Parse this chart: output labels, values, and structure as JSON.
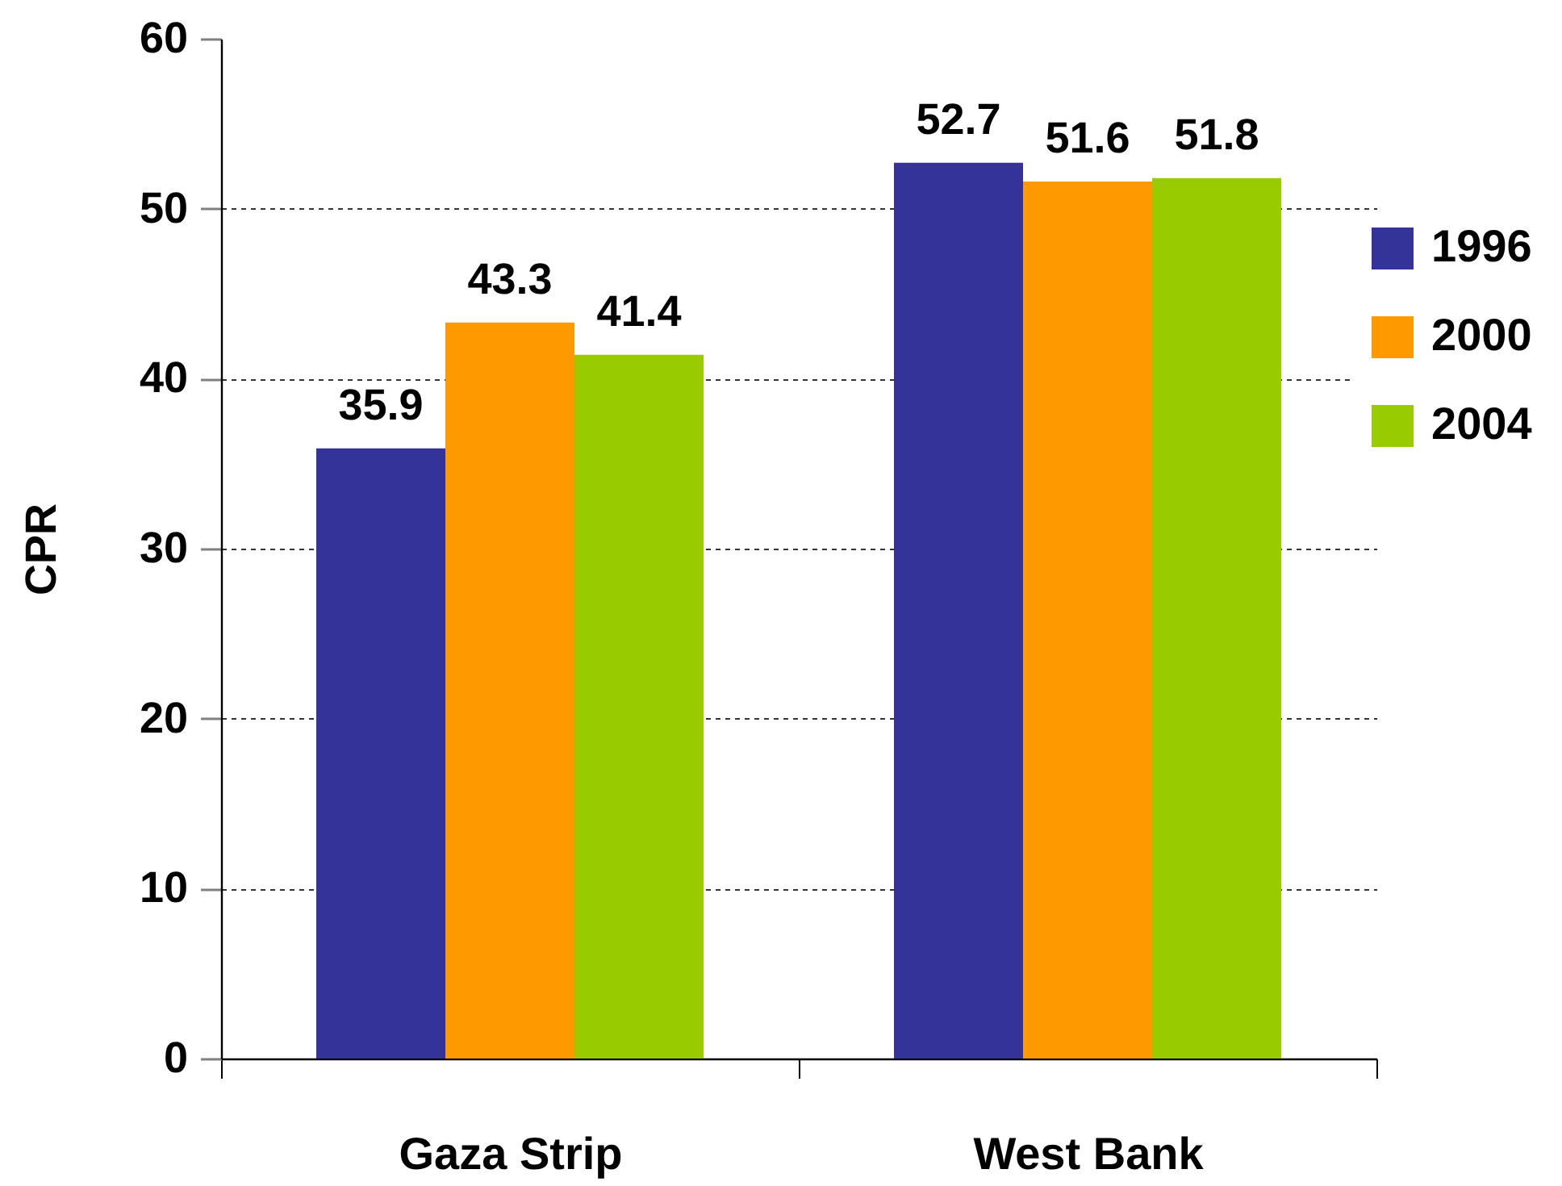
{
  "chart_data": {
    "type": "bar",
    "ylabel": "CPR",
    "categories": [
      "Gaza Strip",
      "West Bank"
    ],
    "series": [
      {
        "name": "1996",
        "color": "#333399",
        "values": [
          35.9,
          52.7
        ]
      },
      {
        "name": "2000",
        "color": "#ff9900",
        "values": [
          43.3,
          51.6
        ]
      },
      {
        "name": "2004",
        "color": "#99cc00",
        "values": [
          41.4,
          51.8
        ]
      }
    ],
    "ylim": [
      0,
      60
    ],
    "yticks": [
      0,
      10,
      20,
      30,
      40,
      50,
      60
    ],
    "grid": "y",
    "legend": "right",
    "data_labels": true
  }
}
